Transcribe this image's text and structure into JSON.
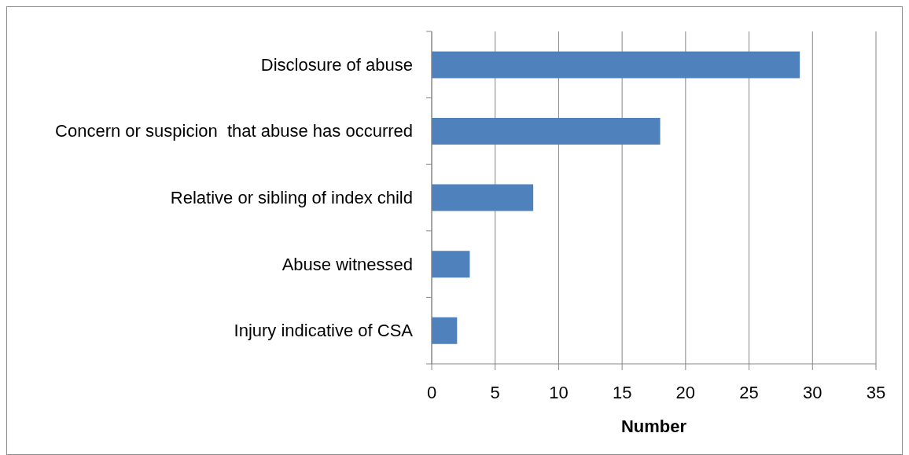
{
  "chart_data": {
    "type": "bar",
    "orientation": "horizontal",
    "categories": [
      "Disclosure of abuse",
      "Concern or suspicion  that abuse has occurred",
      "Relative or sibling of index child",
      "Abuse witnessed",
      "Injury indicative of CSA"
    ],
    "values": [
      29,
      18,
      8,
      3,
      2
    ],
    "color": "#4f81bd",
    "xlabel": "Number",
    "xlim": [
      0,
      35
    ],
    "xticks": [
      0,
      5,
      10,
      15,
      20,
      25,
      30,
      35
    ],
    "grid": "x"
  }
}
